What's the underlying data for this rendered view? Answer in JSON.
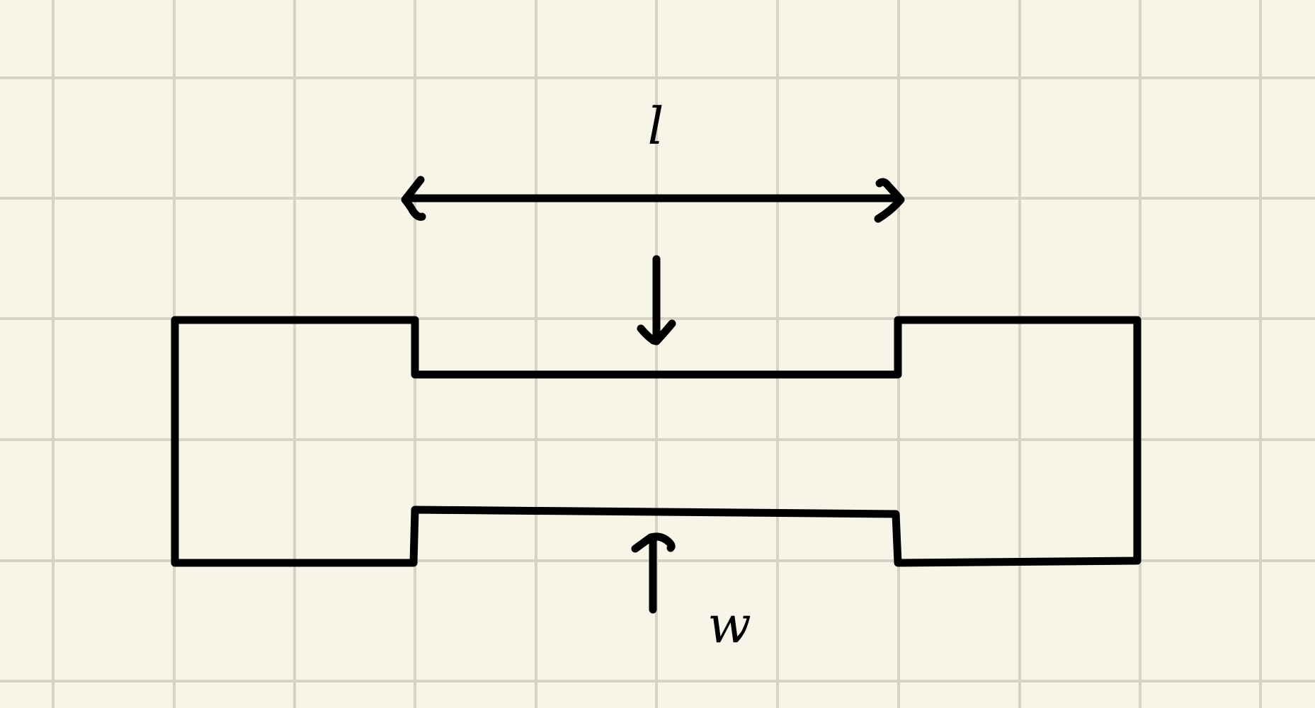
{
  "diagram": {
    "type": "dimensioned-shape-sketch",
    "length_label": "l",
    "width_label": "w",
    "colors": {
      "paper": "#f7f4e8",
      "grid": "#d6d3c6",
      "ink": "#000000"
    }
  }
}
